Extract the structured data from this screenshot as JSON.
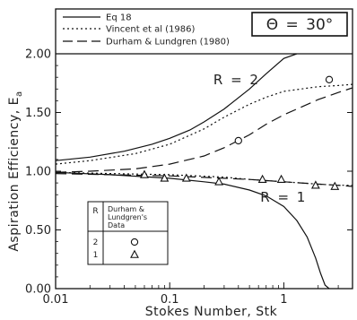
{
  "chart_data": {
    "type": "line",
    "xlabel": "Stokes Number, Stk",
    "ylabel": "Aspiration Efficiency, E",
    "ylabel_subscript": "a",
    "x_scale": "log",
    "xlim": [
      0.01,
      4
    ],
    "ylim": [
      0.0,
      2.0
    ],
    "x_ticks": [
      {
        "value": 0.01,
        "label": "0.01"
      },
      {
        "value": 0.1,
        "label": "0.1"
      },
      {
        "value": 1,
        "label": "1"
      }
    ],
    "y_ticks": [
      {
        "value": 0.0,
        "label": "0.00"
      },
      {
        "value": 0.5,
        "label": "0.50"
      },
      {
        "value": 1.0,
        "label": "1.00"
      },
      {
        "value": 1.5,
        "label": "1.50"
      },
      {
        "value": 2.0,
        "label": "2.00"
      }
    ],
    "legend": {
      "placement": "top-left",
      "entries": [
        {
          "label": "Eq 18",
          "dash": "solid"
        },
        {
          "label": "Vincent et al (1986)",
          "dash": "dotted"
        },
        {
          "label": "Durham & Lundgren (1980)",
          "dash": "dashed"
        }
      ]
    },
    "condition_label": "Θ = 30°",
    "curve_labels": [
      {
        "text": "R = 2",
        "x": 0.38,
        "y": 1.78
      },
      {
        "text": "R = 1",
        "x": 0.98,
        "y": 0.78
      }
    ],
    "series": [
      {
        "name": "Eq 18",
        "group": "R = 2",
        "dash": "solid",
        "x": [
          0.01,
          0.02,
          0.04,
          0.07,
          0.1,
          0.15,
          0.2,
          0.3,
          0.5,
          0.7,
          1.0,
          1.3
        ],
        "y": [
          1.09,
          1.12,
          1.17,
          1.23,
          1.28,
          1.35,
          1.42,
          1.53,
          1.7,
          1.83,
          1.96,
          2.0
        ]
      },
      {
        "name": "Vincent et al (1986)",
        "group": "R = 2",
        "dash": "dotted",
        "x": [
          0.01,
          0.02,
          0.05,
          0.1,
          0.2,
          0.3,
          0.5,
          0.7,
          1.0,
          2.0,
          3.0,
          4.0
        ],
        "y": [
          1.06,
          1.09,
          1.15,
          1.23,
          1.36,
          1.46,
          1.57,
          1.63,
          1.68,
          1.72,
          1.73,
          1.74
        ]
      },
      {
        "name": "Durham & Lundgren (1980)",
        "group": "R = 2",
        "dash": "dashed",
        "x": [
          0.01,
          0.02,
          0.05,
          0.1,
          0.2,
          0.3,
          0.5,
          0.7,
          1.0,
          2.0,
          3.0,
          4.0
        ],
        "y": [
          0.99,
          1.0,
          1.02,
          1.06,
          1.13,
          1.2,
          1.31,
          1.4,
          1.48,
          1.61,
          1.67,
          1.71
        ]
      },
      {
        "name": "Eq 18",
        "group": "R = 1",
        "dash": "solid",
        "x": [
          0.01,
          0.03,
          0.1,
          0.2,
          0.3,
          0.5,
          0.7,
          1.0,
          1.3,
          1.6,
          1.9,
          2.1,
          2.3,
          2.5
        ],
        "y": [
          0.99,
          0.97,
          0.94,
          0.91,
          0.89,
          0.84,
          0.79,
          0.7,
          0.58,
          0.44,
          0.26,
          0.13,
          0.03,
          0.0
        ]
      },
      {
        "name": "Vincent et al (1986)",
        "group": "R = 1",
        "dash": "dotted",
        "x": [
          0.01,
          0.03,
          0.1,
          0.3,
          0.5,
          1.0,
          2.0,
          3.0,
          4.0
        ],
        "y": [
          0.99,
          0.98,
          0.97,
          0.95,
          0.93,
          0.91,
          0.89,
          0.88,
          0.88
        ]
      },
      {
        "name": "Durham & Lundgren (1980)",
        "group": "R = 1",
        "dash": "dashed",
        "x": [
          0.01,
          0.03,
          0.1,
          0.3,
          0.5,
          1.0,
          2.0,
          3.0,
          4.0
        ],
        "y": [
          0.98,
          0.97,
          0.96,
          0.94,
          0.93,
          0.91,
          0.89,
          0.88,
          0.87
        ]
      }
    ],
    "points": [
      {
        "marker": "circle",
        "R": 2,
        "x": 0.4,
        "y": 1.26
      },
      {
        "marker": "circle",
        "R": 2,
        "x": 2.5,
        "y": 1.78
      },
      {
        "marker": "triangle",
        "R": 1,
        "x": 0.06,
        "y": 0.97
      },
      {
        "marker": "triangle",
        "R": 1,
        "x": 0.09,
        "y": 0.94
      },
      {
        "marker": "triangle",
        "R": 1,
        "x": 0.14,
        "y": 0.94
      },
      {
        "marker": "triangle",
        "R": 1,
        "x": 0.27,
        "y": 0.91
      },
      {
        "marker": "triangle",
        "R": 1,
        "x": 0.65,
        "y": 0.93
      },
      {
        "marker": "triangle",
        "R": 1,
        "x": 0.95,
        "y": 0.93
      },
      {
        "marker": "triangle",
        "R": 1,
        "x": 1.9,
        "y": 0.88
      },
      {
        "marker": "triangle",
        "R": 1,
        "x": 2.8,
        "y": 0.87
      }
    ],
    "data_key": {
      "header_r": "R",
      "header_source": "Durham & Lundgren's Data",
      "header_source_lines": [
        "Durham &",
        "Lundgren's",
        "Data"
      ],
      "rows": [
        {
          "r": "2",
          "marker": "circle"
        },
        {
          "r": "1",
          "marker": "triangle"
        }
      ]
    },
    "grid": false
  }
}
